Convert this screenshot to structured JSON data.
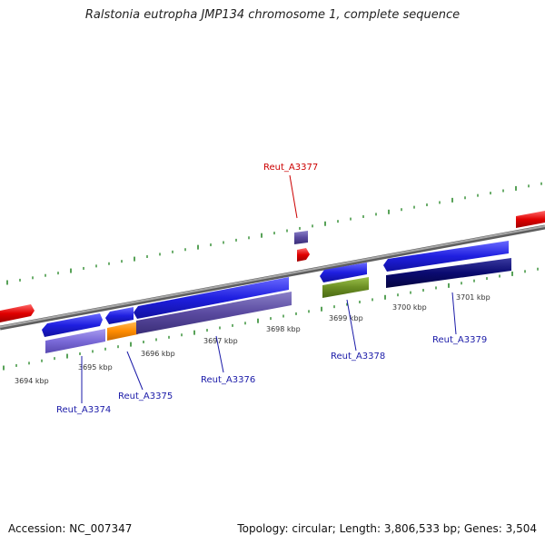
{
  "title": "Ralstonia eutropha JMP134 chromosome 1, complete sequence",
  "footer": {
    "accession": "Accession: NC_007347",
    "topology": "Topology: circular; Length: 3,806,533 bp; Genes: 3,504"
  },
  "scale_labels": [
    "3694 kbp",
    "3695 kbp",
    "3696 kbp",
    "3697 kbp",
    "3698 kbp",
    "3699 kbp",
    "3700 kbp",
    "3701 kbp"
  ],
  "gene_labels": [
    {
      "name": "Reut_A3374",
      "color": "#1a1aa8"
    },
    {
      "name": "Reut_A3375",
      "color": "#1a1aa8"
    },
    {
      "name": "Reut_A3376",
      "color": "#1a1aa8"
    },
    {
      "name": "Reut_A3377",
      "color": "#cc0000"
    },
    {
      "name": "Reut_A3378",
      "color": "#1a1aa8"
    },
    {
      "name": "Reut_A3379",
      "color": "#1a1aa8"
    }
  ],
  "colors": {
    "backbone": "#8a8a8a",
    "tick": "#2e8b2e",
    "gene_blue": "#1f1fe0",
    "gene_violet": "#5a4aa0",
    "gene_orange": "#ff8c00",
    "gene_olive": "#6b8e23",
    "gene_navy": "#0a0a70",
    "gene_red": "#e00000"
  }
}
